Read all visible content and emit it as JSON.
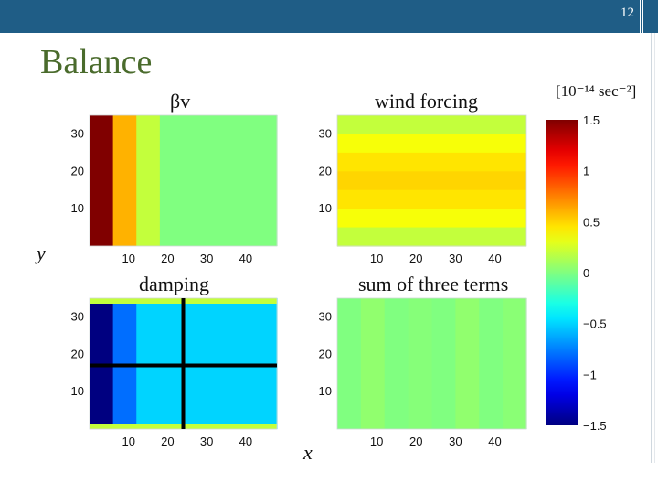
{
  "slide": {
    "page_number": "12",
    "title": "Balance",
    "ylabel": "y",
    "xlabel": "x",
    "colorbar_units": "[10⁻¹⁴ sec⁻²]"
  },
  "chart_data": [
    {
      "type": "heatmap",
      "title": "βv",
      "x_ticks": [
        10,
        20,
        30,
        40
      ],
      "y_ticks": [
        10,
        20,
        30
      ],
      "xlim": [
        0,
        48
      ],
      "ylim": [
        0,
        35
      ],
      "vlim": [
        -1.5,
        1.5
      ],
      "values": [
        [
          1.5,
          0.6,
          0.2,
          0.0,
          0,
          0,
          0,
          0
        ],
        [
          1.5,
          0.6,
          0.2,
          0.0,
          0,
          0,
          0,
          0
        ]
      ]
    },
    {
      "type": "heatmap",
      "title": "wind forcing",
      "x_ticks": [
        10,
        20,
        30,
        40
      ],
      "y_ticks": [
        10,
        20,
        30
      ],
      "xlim": [
        0,
        48
      ],
      "ylim": [
        0,
        35
      ],
      "vlim": [
        -1.5,
        1.5
      ],
      "row_values": [
        0.2,
        0.35,
        0.45,
        0.5,
        0.45,
        0.35,
        0.2
      ]
    },
    {
      "type": "heatmap",
      "title": "damping",
      "x_ticks": [
        10,
        20,
        30,
        40
      ],
      "y_ticks": [
        10,
        20,
        30
      ],
      "xlim": [
        0,
        48
      ],
      "ylim": [
        0,
        35
      ],
      "vlim": [
        -1.5,
        1.5
      ],
      "values": [
        [
          -1.5,
          -0.8,
          -0.5,
          -0.5,
          -0.5,
          -0.5,
          -0.5,
          -0.5
        ]
      ],
      "crosshair": {
        "x": 24,
        "y": 17
      }
    },
    {
      "type": "heatmap",
      "title": "sum of three terms",
      "x_ticks": [
        10,
        20,
        30,
        40
      ],
      "y_ticks": [
        10,
        20,
        30
      ],
      "xlim": [
        0,
        48
      ],
      "ylim": [
        0,
        35
      ],
      "vlim": [
        -1.5,
        1.5
      ],
      "col_values": [
        0.0,
        0.05,
        0.0,
        0.02,
        0.0,
        0.05,
        0.0,
        0.03
      ]
    }
  ],
  "colorbar": {
    "ticks": [
      "1.5",
      "1",
      "0.5",
      "0",
      "−0.5",
      "−1",
      "−1.5"
    ],
    "tick_values": [
      1.5,
      1,
      0.5,
      0,
      -0.5,
      -1,
      -1.5
    ]
  }
}
